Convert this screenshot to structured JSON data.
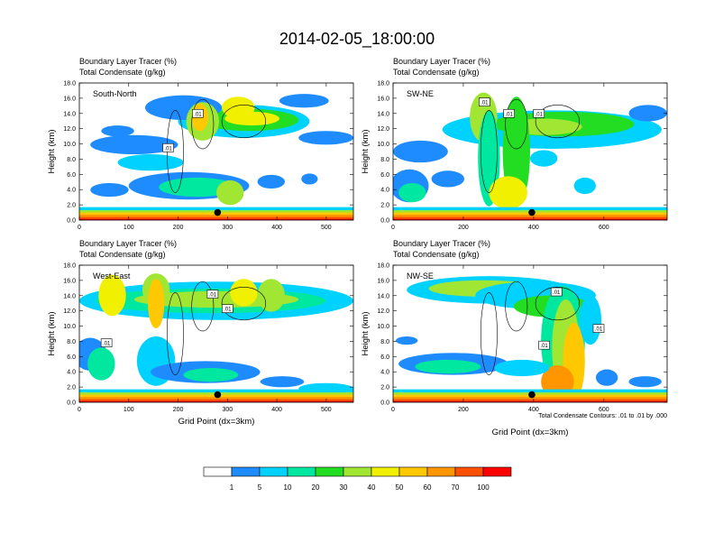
{
  "figure": {
    "title": "2014-02-05_18:00:00",
    "xlabel": "Grid Point (dx=3km)",
    "ylabel": "Height (km)",
    "contour_note": "Total Condensate Contours: .01 to .01 by .000",
    "field_label_1": "Boundary Layer Tracer",
    "field_unit_1": "(%)",
    "field_label_2": "Total Condensate",
    "field_unit_2": "(g/kg)",
    "contour_label": ".01",
    "colors": {
      "levels": [
        "#ffffff",
        "#1e8cff",
        "#00d2ff",
        "#00e8a0",
        "#22dd22",
        "#a0e632",
        "#f0f000",
        "#ffc800",
        "#ff9600",
        "#ff5000",
        "#ff0000"
      ]
    }
  },
  "chart_data": [
    {
      "type": "heatmap",
      "name": "South-North",
      "xlim": [
        0,
        555
      ],
      "ylim": [
        0,
        18
      ],
      "xticks": [
        0,
        100,
        200,
        300,
        400,
        500
      ],
      "yticks": [
        "0.0",
        "2.0",
        "4.0",
        "6.0",
        "8.0",
        "10.0",
        "12.0",
        "14.0",
        "16.0",
        "18.0"
      ],
      "marker": {
        "x": 280,
        "y": 1.0
      },
      "contour_labels": [
        {
          "x": 240,
          "y": 14.0
        },
        {
          "x": 180,
          "y": 9.5
        }
      ]
    },
    {
      "type": "heatmap",
      "name": "SW-NE",
      "xlim": [
        0,
        780
      ],
      "ylim": [
        0,
        18
      ],
      "xticks": [
        0,
        200,
        400,
        600
      ],
      "yticks": [
        "0.0",
        "2.0",
        "4.0",
        "6.0",
        "8.0",
        "10.0",
        "12.0",
        "14.0",
        "16.0",
        "18.0"
      ],
      "marker": {
        "x": 395,
        "y": 1.0
      },
      "contour_labels": [
        {
          "x": 260,
          "y": 15.5
        },
        {
          "x": 330,
          "y": 14.0
        },
        {
          "x": 415,
          "y": 14.0
        }
      ]
    },
    {
      "type": "heatmap",
      "name": "West-East",
      "xlim": [
        0,
        555
      ],
      "ylim": [
        0,
        18
      ],
      "xticks": [
        0,
        100,
        200,
        300,
        400,
        500
      ],
      "yticks": [
        "0.0",
        "2.0",
        "4.0",
        "6.0",
        "8.0",
        "10.0",
        "12.0",
        "14.0",
        "16.0",
        "18.0"
      ],
      "marker": {
        "x": 280,
        "y": 1.0
      },
      "contour_labels": [
        {
          "x": 270,
          "y": 14.2
        },
        {
          "x": 300,
          "y": 12.3
        },
        {
          "x": 55,
          "y": 7.8
        }
      ]
    },
    {
      "type": "heatmap",
      "name": "NW-SE",
      "xlim": [
        0,
        780
      ],
      "ylim": [
        0,
        18
      ],
      "xticks": [
        0,
        200,
        400,
        600
      ],
      "yticks": [
        "0.0",
        "2.0",
        "4.0",
        "6.0",
        "8.0",
        "10.0",
        "12.0",
        "14.0",
        "16.0",
        "18.0"
      ],
      "marker": {
        "x": 395,
        "y": 1.0
      },
      "contour_labels": [
        {
          "x": 465,
          "y": 14.5
        },
        {
          "x": 585,
          "y": 9.7
        },
        {
          "x": 430,
          "y": 7.5
        }
      ]
    }
  ],
  "colorbar": {
    "labels": [
      "1",
      "5",
      "10",
      "20",
      "30",
      "40",
      "50",
      "60",
      "70",
      "100"
    ]
  }
}
